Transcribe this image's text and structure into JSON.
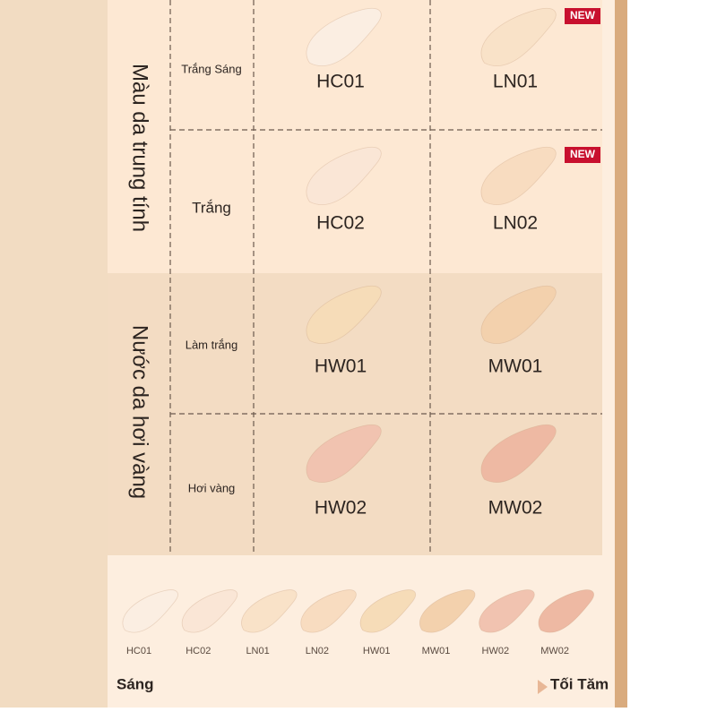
{
  "groups": [
    {
      "label": "Màu da trung tính",
      "rows": [
        {
          "label": "Trắng Sáng",
          "shades": [
            {
              "code": "HC01",
              "color": "#fbeee2"
            },
            {
              "code": "LN01",
              "color": "#f9e2c8",
              "badge": "NEW"
            }
          ]
        },
        {
          "label": "Trắng",
          "shades": [
            {
              "code": "HC02",
              "color": "#fae6d6"
            },
            {
              "code": "LN02",
              "color": "#f8dcc0",
              "badge": "NEW"
            }
          ]
        }
      ]
    },
    {
      "label": "Nước da hơi vàng",
      "rows": [
        {
          "label": "Làm trắng",
          "shades": [
            {
              "code": "HW01",
              "color": "#f6dcb8"
            },
            {
              "code": "MW01",
              "color": "#f3d1ad"
            }
          ]
        },
        {
          "label": "Hơi vàng",
          "shades": [
            {
              "code": "HW02",
              "color": "#f1c3b0"
            },
            {
              "code": "MW02",
              "color": "#eeb9a3"
            }
          ]
        }
      ]
    }
  ],
  "swatches": [
    {
      "code": "HC01",
      "color": "#fbeee2"
    },
    {
      "code": "HC02",
      "color": "#fae6d6"
    },
    {
      "code": "LN01",
      "color": "#f9e2c8"
    },
    {
      "code": "LN02",
      "color": "#f8dcc0"
    },
    {
      "code": "HW01",
      "color": "#f6dcb8"
    },
    {
      "code": "MW01",
      "color": "#f3d1ad"
    },
    {
      "code": "HW02",
      "color": "#f1c3b0"
    },
    {
      "code": "MW02",
      "color": "#eeb9a3"
    }
  ],
  "scale": {
    "start": "Sáng",
    "end": "Tối Tăm"
  }
}
